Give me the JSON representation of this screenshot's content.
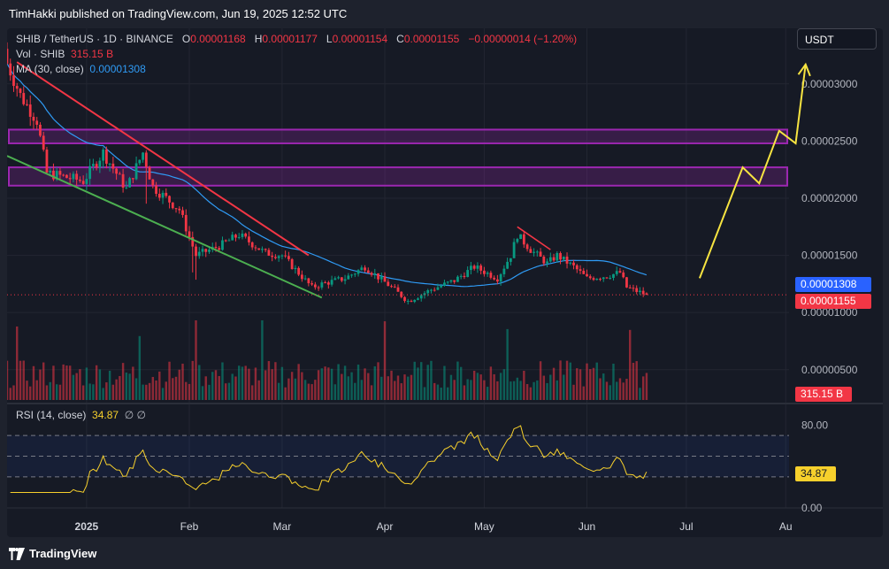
{
  "header": {
    "published": "TimHakki published on TradingView.com, Jun 19, 2025 12:52 UTC"
  },
  "legend": {
    "symbol": "SHIB / TetherUS · 1D · BINANCE",
    "o_label": "O",
    "o_value": "0.00001168",
    "h_label": "H",
    "h_value": "0.00001177",
    "l_label": "L",
    "l_value": "0.00001154",
    "c_label": "C",
    "c_value": "0.00001155",
    "change": "−0.00000014 (−1.20%)",
    "vol_label": "Vol · SHIB",
    "vol_value": "315.15 B",
    "ma_label": "MA (30, close)",
    "ma_value": "0.00001308"
  },
  "currency": "USDT",
  "badges": {
    "ma": "0.00001308",
    "close": "0.00001155",
    "volume": "315.15 B",
    "rsi": "34.87"
  },
  "rsi_legend": {
    "label": "RSI (14, close)",
    "value": "34.87",
    "icons": "∅ ∅"
  },
  "footer": {
    "brand": "TradingView"
  },
  "colors": {
    "up": "#089981",
    "down": "#f23645",
    "ma": "#2f9bf5",
    "rsi": "#f7d02c",
    "box": "#9c27b0",
    "arrow": "#f7e441",
    "resistance": "#f23645",
    "support": "#4caf50"
  },
  "chart_data": {
    "type": "candlestick",
    "symbol": "SHIB / TetherUS",
    "interval": "1D",
    "exchange": "BINANCE",
    "price_axis": {
      "ticks": [
        "0.00003000",
        "0.00002500",
        "0.00002000",
        "0.00001500",
        "0.00001000",
        "0.00000500"
      ],
      "range": [
        2.35e-06,
        3.486e-05
      ]
    },
    "time_axis": {
      "labels": [
        "2025",
        "Feb",
        "Mar",
        "Apr",
        "May",
        "Jun",
        "Jul",
        "Au"
      ],
      "range": [
        "2024-12-08",
        "2025-08-01"
      ]
    },
    "rsi_axis": {
      "ticks": [
        "80.00",
        "0.00"
      ],
      "levels": [
        70,
        50,
        30
      ]
    },
    "anchors": [
      [
        "2024-12-08",
        3.18e-05
      ],
      [
        "2024-12-12",
        2.9e-05
      ],
      [
        "2024-12-17",
        2.68e-05
      ],
      [
        "2024-12-20",
        2.22e-05
      ],
      [
        "2024-12-31",
        2.15e-05
      ],
      [
        "2025-01-06",
        2.4e-05
      ],
      [
        "2025-01-13",
        2.08e-05
      ],
      [
        "2025-01-18",
        2.4e-05
      ],
      [
        "2025-01-21",
        2.1e-05
      ],
      [
        "2025-01-29",
        1.9e-05
      ],
      [
        "2025-02-03",
        1.5e-05
      ],
      [
        "2025-02-10",
        1.58e-05
      ],
      [
        "2025-02-16",
        1.68e-05
      ],
      [
        "2025-02-24",
        1.52e-05
      ],
      [
        "2025-03-01",
        1.5e-05
      ],
      [
        "2025-03-10",
        1.22e-05
      ],
      [
        "2025-03-13",
        1.25e-05
      ],
      [
        "2025-03-20",
        1.3e-05
      ],
      [
        "2025-03-26",
        1.4e-05
      ],
      [
        "2025-04-03",
        1.22e-05
      ],
      [
        "2025-04-08",
        1.1e-05
      ],
      [
        "2025-04-15",
        1.2e-05
      ],
      [
        "2025-04-22",
        1.28e-05
      ],
      [
        "2025-04-28",
        1.4e-05
      ],
      [
        "2025-05-05",
        1.3e-05
      ],
      [
        "2025-05-09",
        1.5e-05
      ],
      [
        "2025-05-11",
        1.68e-05
      ],
      [
        "2025-05-15",
        1.55e-05
      ],
      [
        "2025-05-20",
        1.43e-05
      ],
      [
        "2025-05-23",
        1.5e-05
      ],
      [
        "2025-05-28",
        1.4e-05
      ],
      [
        "2025-06-01",
        1.3e-05
      ],
      [
        "2025-06-07",
        1.32e-05
      ],
      [
        "2025-06-11",
        1.35e-05
      ],
      [
        "2025-06-13",
        1.22e-05
      ],
      [
        "2025-06-19",
        1.155e-05
      ]
    ],
    "last": {
      "open": 1.168e-05,
      "high": 1.177e-05,
      "low": 1.154e-05,
      "close": 1.155e-05
    },
    "volume_last": "315.15 B",
    "ma30_last": 1.308e-05,
    "rsi_last": 34.87,
    "annotations": {
      "zones": [
        {
          "from": 2.48e-05,
          "to": 2.6e-05
        },
        {
          "from": 2.11e-05,
          "to": 2.27e-05
        }
      ],
      "resistance_line": [
        [
          "2024-12-11",
          3.19e-05
        ],
        [
          "2025-03-09",
          1.5e-05
        ]
      ],
      "support_line": [
        [
          "2024-12-08",
          2.37e-05
        ],
        [
          "2025-03-13",
          1.13e-05
        ]
      ],
      "small_wedge": [
        [
          "2025-05-11",
          1.75e-05
        ],
        [
          "2025-05-21",
          1.55e-05
        ]
      ],
      "projection_arrow": [
        [
          "2025-07-05",
          1.3e-05
        ],
        [
          "2025-07-18",
          2.27e-05
        ],
        [
          "2025-07-23",
          2.13e-05
        ],
        [
          "2025-07-29",
          2.59e-05
        ],
        [
          "2025-08-03",
          2.48e-05
        ],
        [
          "2025-08-06",
          3.17e-05
        ]
      ]
    }
  }
}
